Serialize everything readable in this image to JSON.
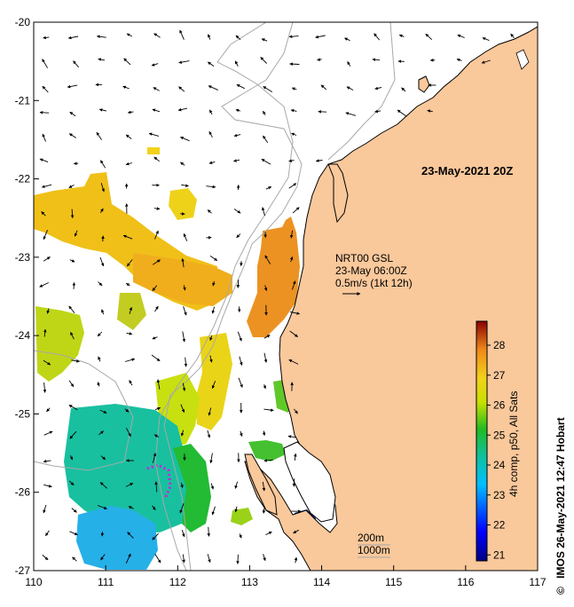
{
  "map": {
    "title": "23-May-2021 20Z",
    "x_ticks": [
      "110",
      "111",
      "112",
      "113",
      "114",
      "115",
      "116",
      "117"
    ],
    "y_ticks": [
      "-20",
      "-21",
      "-22",
      "-23",
      "-24",
      "-25",
      "-26",
      "-27"
    ],
    "lon_range": [
      110,
      117
    ],
    "lat_range": [
      -27,
      -20
    ],
    "land_color": "#f9c89b",
    "coast_color": "#000000",
    "isobath_color": "#a8a8a8",
    "current_legend": {
      "line1": "NRT00 GSL",
      "line2": "23-May 06:00Z",
      "line3": "0.5m/s (1kt 12h)"
    },
    "isobaths": {
      "label1": "200m",
      "label2": "1000m"
    }
  },
  "colorbar": {
    "label": "4h comp, p50,  All Sats",
    "ticks": [
      "28",
      "27",
      "26",
      "25",
      "24",
      "23",
      "22",
      "21"
    ],
    "range": [
      20.8,
      28.8
    ]
  },
  "credit": {
    "symbol": "©",
    "text": "IMOS 26-May-2021 12:47 Hobart"
  }
}
